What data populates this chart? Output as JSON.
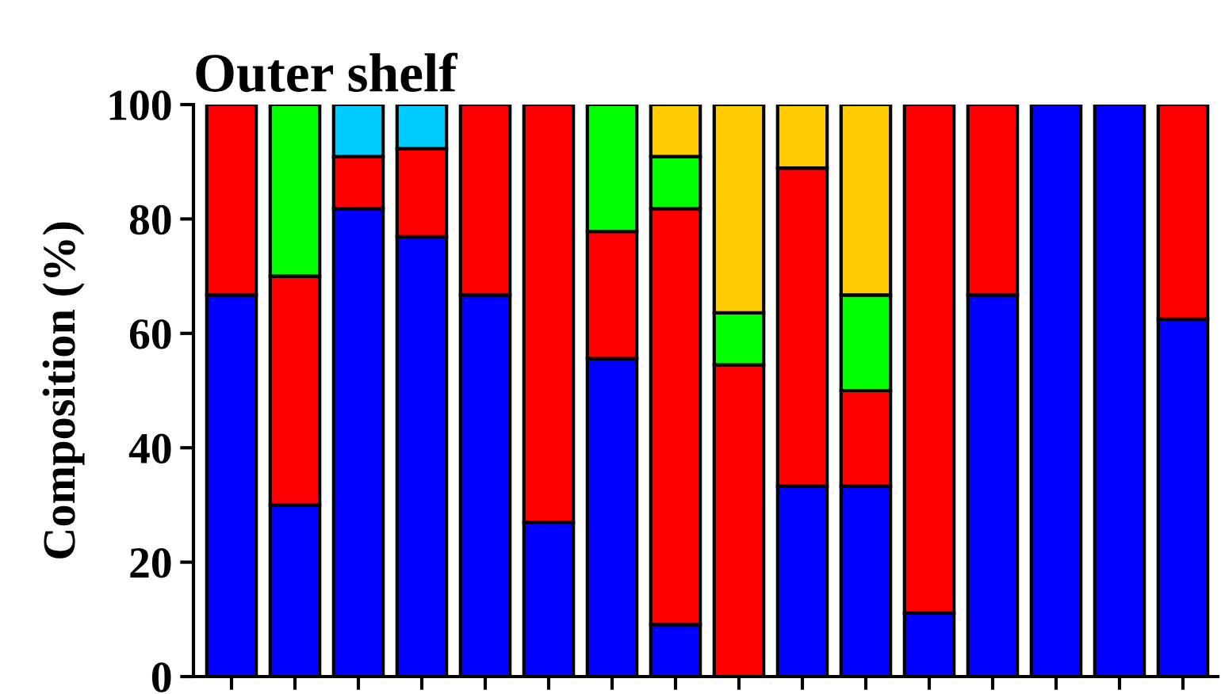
{
  "chart_data": {
    "type": "bar",
    "title": "Outer shelf",
    "ylabel": "Composition (%)",
    "stacked": true,
    "categories": [
      null,
      null,
      null,
      null,
      null,
      null,
      null,
      null,
      null,
      null,
      null,
      null,
      null,
      null,
      null,
      null
    ],
    "series": [
      {
        "color": "#0000ff",
        "values": [
          66.7,
          30,
          81.8,
          76.9,
          66.7,
          27,
          55.6,
          9.1,
          0,
          33.3,
          33.3,
          11.1,
          66.7,
          100,
          100,
          62.5
        ]
      },
      {
        "color": "#ff0000",
        "values": [
          33.3,
          40,
          9.1,
          15.4,
          33.3,
          73,
          22.2,
          72.7,
          54.5,
          55.6,
          16.7,
          88.9,
          33.3,
          0,
          0,
          37.5
        ]
      },
      {
        "color": "#00ff00",
        "values": [
          0,
          30,
          0,
          0,
          0,
          0,
          22.2,
          9.1,
          9.1,
          0,
          16.7,
          0,
          0,
          0,
          0,
          0
        ]
      },
      {
        "color": "#00ccff",
        "values": [
          0,
          0,
          9.1,
          7.7,
          0,
          0,
          0,
          0,
          0,
          0,
          0,
          0,
          0,
          0,
          0,
          0
        ]
      },
      {
        "color": "#ffcc00",
        "values": [
          0,
          0,
          0,
          0,
          0,
          0,
          0,
          9.1,
          36.4,
          11.1,
          33.3,
          0,
          0,
          0,
          0,
          0
        ]
      }
    ],
    "ylim": [
      0,
      100
    ],
    "yticks": [
      0,
      20,
      40,
      60,
      80,
      100
    ],
    "grid": false,
    "tick_labels": "y"
  }
}
